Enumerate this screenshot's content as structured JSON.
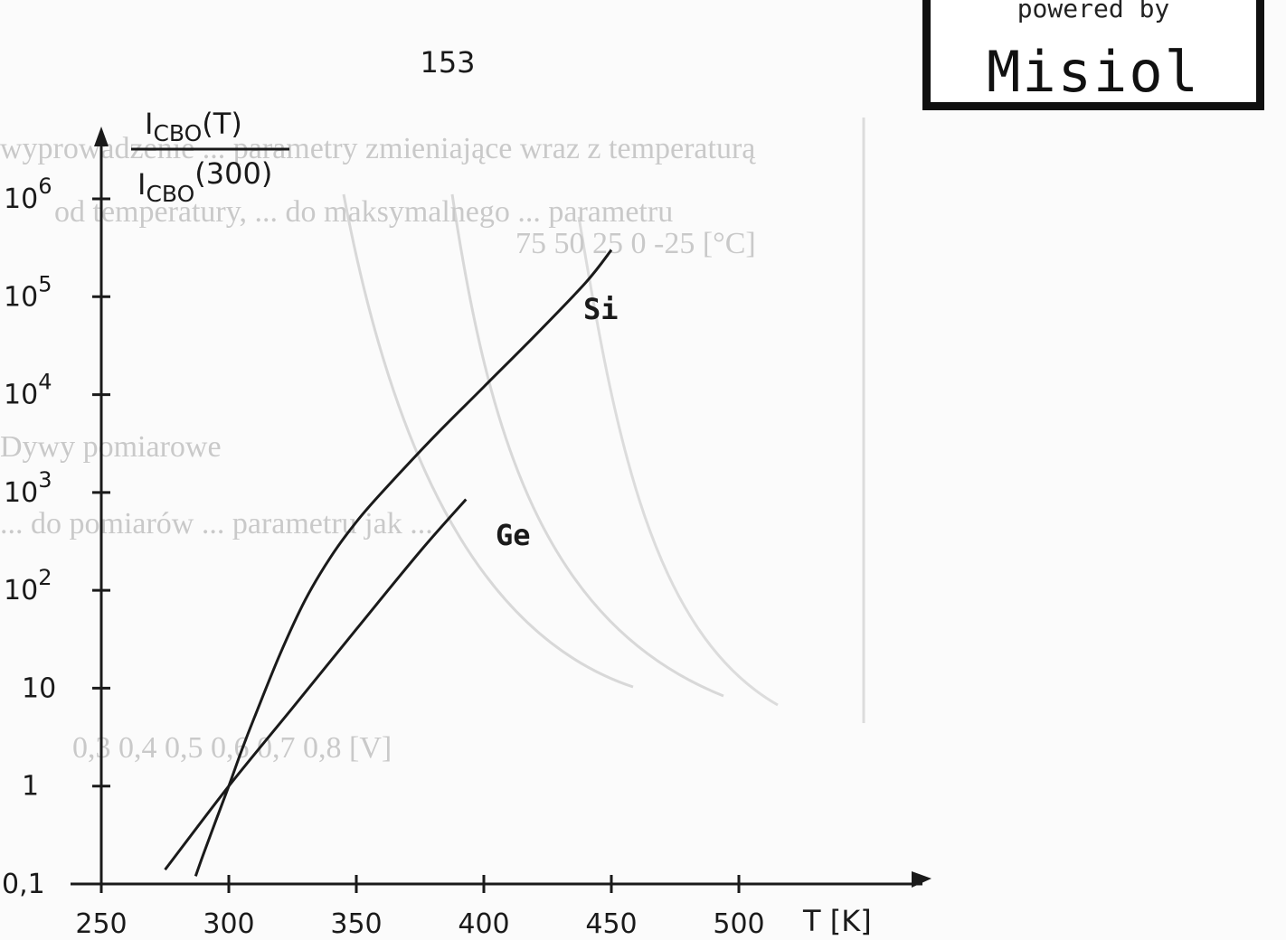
{
  "page_number": "153",
  "watermark": {
    "top": "powered by",
    "main": "Misiol"
  },
  "ylabel": {
    "numerator": "I",
    "numerator_sub": "CBO",
    "numerator_arg": "(T)",
    "denominator": "I",
    "denominator_sub": "CBO",
    "denominator_arg": "(300)"
  },
  "xlabel": "T [K]",
  "chart_data": {
    "type": "line",
    "title": "",
    "xlabel": "T [K]",
    "ylabel": "I_CBO(T) / I_CBO(300)",
    "xlim": [
      250,
      500
    ],
    "ylim": [
      0.1,
      1000000
    ],
    "yscale": "log",
    "grid": false,
    "xticks": [
      250,
      300,
      350,
      400,
      450,
      500
    ],
    "xtick_labels": [
      "250",
      "300",
      "350",
      "400",
      "450",
      "500"
    ],
    "yticks": [
      {
        "value": 0.1,
        "base": "0,1",
        "exp": ""
      },
      {
        "value": 1,
        "base": "1",
        "exp": ""
      },
      {
        "value": 10,
        "base": "10",
        "exp": ""
      },
      {
        "value": 100,
        "base": "10",
        "exp": "2"
      },
      {
        "value": 1000,
        "base": "10",
        "exp": "3"
      },
      {
        "value": 10000,
        "base": "10",
        "exp": "4"
      },
      {
        "value": 100000,
        "base": "10",
        "exp": "5"
      },
      {
        "value": 1000000,
        "base": "10",
        "exp": "6"
      }
    ],
    "series": [
      {
        "name": "Si",
        "x": [
          287,
          290,
          295,
          300,
          305,
          310,
          320,
          330,
          340,
          350,
          360,
          380,
          400,
          420,
          440,
          450
        ],
        "y": [
          0.12,
          0.2,
          0.45,
          1,
          2.3,
          5,
          22,
          80,
          220,
          500,
          1000,
          3600,
          12000,
          40000,
          140000,
          300000
        ]
      },
      {
        "name": "Ge",
        "x": [
          275,
          300,
          325,
          350,
          375,
          393
        ],
        "y": [
          0.14,
          1,
          6.3,
          40,
          250,
          850
        ]
      }
    ]
  },
  "background_text": [
    "wyprowadzenie ...  parametry zmieniające wraz z temperaturą",
    "od temperatury, ... do maksymalnego ... parametru",
    "75      50    25  0    -25 [°C]",
    "Dywy pomiarowe",
    "... do pomiarów ... parametru jak ...",
    "0,3   0,4   0,5    0,6    0,7    0,8    [V]"
  ]
}
